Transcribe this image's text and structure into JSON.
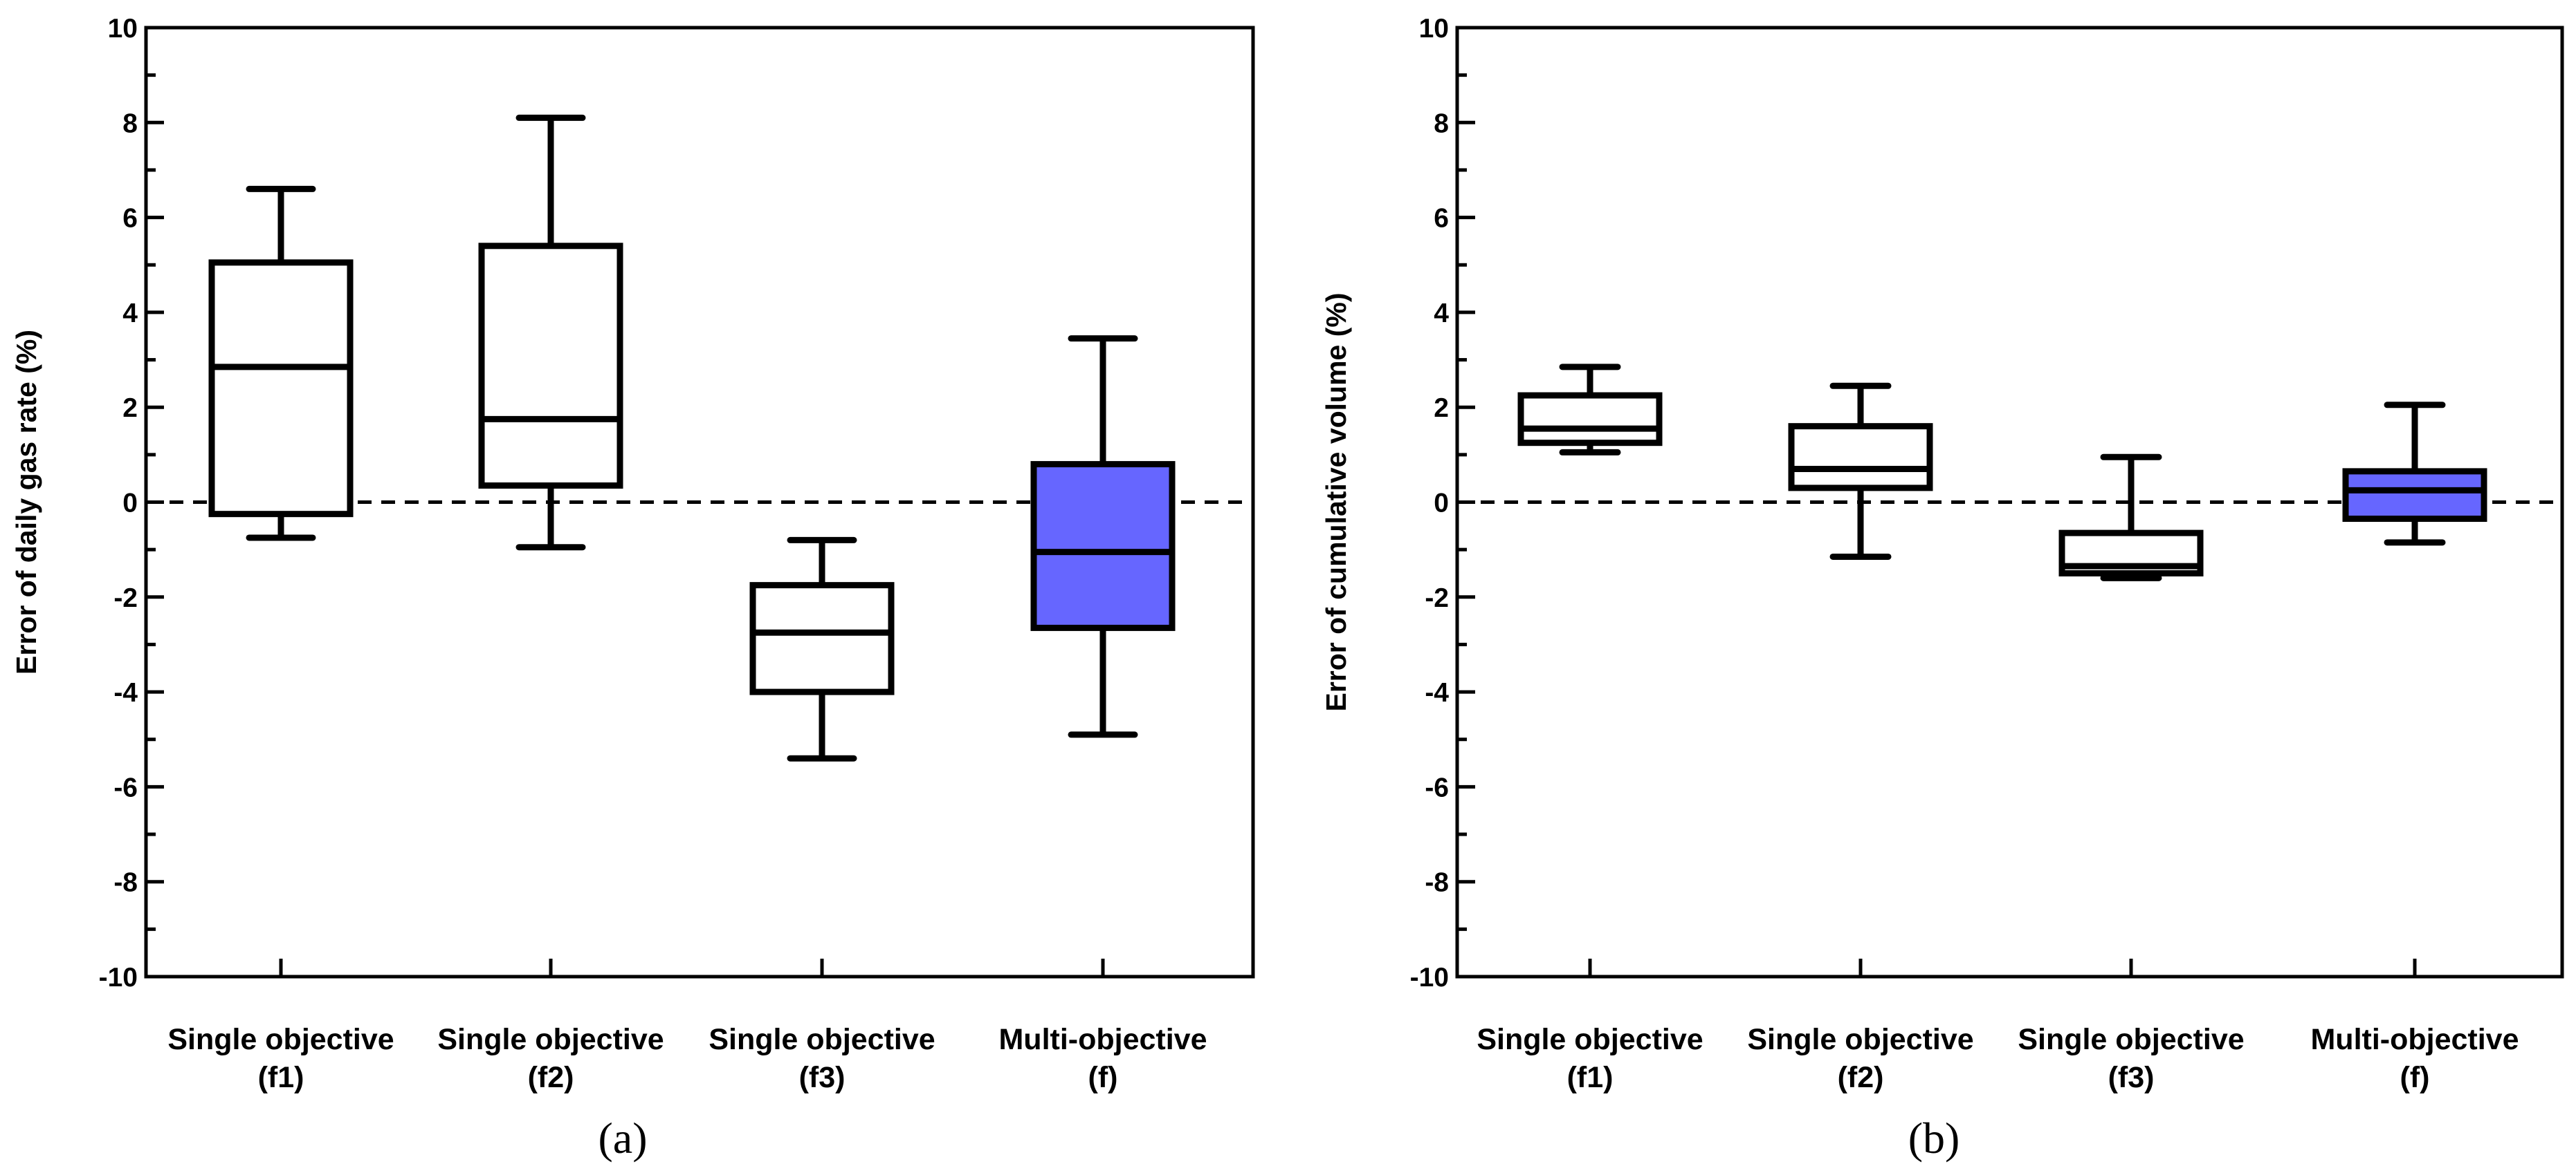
{
  "colors": {
    "line": "#000000",
    "white_box": "#ffffff",
    "multi_box": "#6666ff"
  },
  "chart_data": [
    {
      "type": "box",
      "panel_label": "(a)",
      "ylabel": "Error of daily gas rate (%)",
      "ylim": [
        -10,
        10
      ],
      "yticks": [
        "10",
        "8",
        "6",
        "4",
        "2",
        "0",
        "-2",
        "-4",
        "-6",
        "-8",
        "-10"
      ],
      "reference_line": 0,
      "categories": [
        {
          "line1": "Single objective",
          "line2": "(f1)"
        },
        {
          "line1": "Single objective",
          "line2": "(f2)"
        },
        {
          "line1": "Single objective",
          "line2": "(f3)"
        },
        {
          "line1": "Multi-objective",
          "line2": "(f)"
        }
      ],
      "boxes": [
        {
          "min": -0.75,
          "q1": -0.25,
          "median": 2.85,
          "q3": 5.05,
          "max": 6.6,
          "fill": "#ffffff"
        },
        {
          "min": -0.95,
          "q1": 0.35,
          "median": 1.75,
          "q3": 5.4,
          "max": 8.1,
          "fill": "#ffffff"
        },
        {
          "min": -5.4,
          "q1": -4.0,
          "median": -2.75,
          "q3": -1.75,
          "max": -0.8,
          "fill": "#ffffff"
        },
        {
          "min": -4.9,
          "q1": -2.65,
          "median": -1.05,
          "q3": 0.8,
          "max": 3.45,
          "fill": "#6666ff"
        }
      ]
    },
    {
      "type": "box",
      "panel_label": "(b)",
      "ylabel": "Error of cumulative volume (%)",
      "ylim": [
        -10,
        10
      ],
      "yticks": [
        "10",
        "8",
        "6",
        "4",
        "2",
        "0",
        "-2",
        "-4",
        "-6",
        "-8",
        "-10"
      ],
      "reference_line": 0,
      "categories": [
        {
          "line1": "Single objective",
          "line2": "(f1)"
        },
        {
          "line1": "Single objective",
          "line2": "(f2)"
        },
        {
          "line1": "Single objective",
          "line2": "(f3)"
        },
        {
          "line1": "Multi-objective",
          "line2": "(f)"
        }
      ],
      "boxes": [
        {
          "min": 1.05,
          "q1": 1.25,
          "median": 1.55,
          "q3": 2.25,
          "max": 2.85,
          "fill": "#ffffff"
        },
        {
          "min": -1.15,
          "q1": 0.3,
          "median": 0.7,
          "q3": 1.6,
          "max": 2.45,
          "fill": "#ffffff"
        },
        {
          "min": -1.6,
          "q1": -1.5,
          "median": -1.35,
          "q3": -0.65,
          "max": 0.95,
          "fill": "#ffffff"
        },
        {
          "min": -0.85,
          "q1": -0.35,
          "median": 0.25,
          "q3": 0.65,
          "max": 2.05,
          "fill": "#6666ff"
        }
      ]
    }
  ]
}
